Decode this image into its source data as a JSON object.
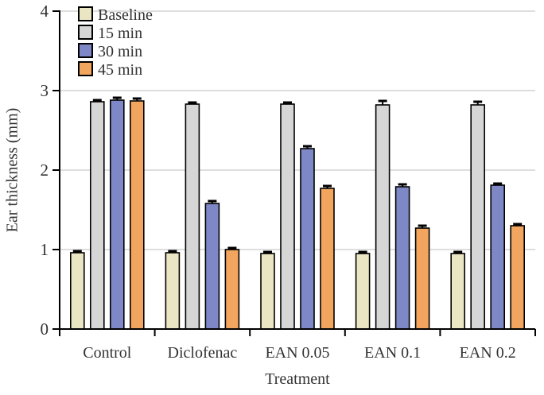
{
  "chart_data": {
    "type": "bar",
    "title": "",
    "xlabel": "Treatment",
    "ylabel": "Ear thickness (mm)",
    "categories": [
      "Control",
      "Diclofenac",
      "EAN 0.05",
      "EAN 0.1",
      "EAN 0.2"
    ],
    "series": [
      {
        "name": "Baseline",
        "color": "#eae6c4",
        "values": [
          0.96,
          0.96,
          0.95,
          0.95,
          0.95
        ],
        "errors": [
          0.02,
          0.02,
          0.02,
          0.02,
          0.02
        ]
      },
      {
        "name": "15 min",
        "color": "#d6d6d6",
        "values": [
          2.86,
          2.83,
          2.83,
          2.82,
          2.82
        ],
        "errors": [
          0.02,
          0.02,
          0.02,
          0.05,
          0.04
        ]
      },
      {
        "name": "30 min",
        "color": "#7e88c6",
        "values": [
          2.88,
          1.58,
          2.27,
          1.79,
          1.81
        ],
        "errors": [
          0.03,
          0.03,
          0.03,
          0.03,
          0.02
        ]
      },
      {
        "name": "45 min",
        "color": "#f1a55e",
        "values": [
          2.87,
          1.0,
          1.77,
          1.27,
          1.3
        ],
        "errors": [
          0.03,
          0.02,
          0.03,
          0.03,
          0.02
        ]
      }
    ],
    "ylim": [
      0,
      4
    ],
    "yticks": [
      0,
      1,
      2,
      3,
      4
    ],
    "grid": true,
    "legend_position": "top-left",
    "grid_color": "#d4d4d4",
    "axis_color": "#000000",
    "bar_border_color": "#000000",
    "text_color": "#333333"
  }
}
